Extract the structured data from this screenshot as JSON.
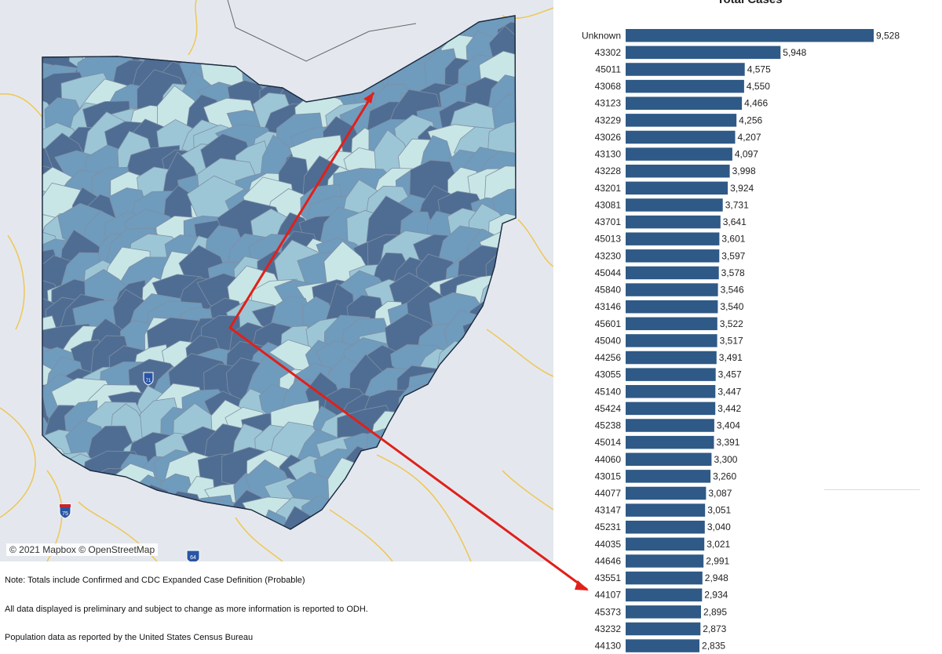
{
  "map": {
    "attribution": "© 2021 Mapbox © OpenStreetMap",
    "shield_i75": "75",
    "shield_i71": "71",
    "shield_i64": "64",
    "colors": {
      "background": "#e4e8ee",
      "dark_fill": "#4f6d93",
      "mid_fill": "#6f9bbd",
      "light_fill": "#9cc6d6",
      "pale_fill": "#c9e6e6",
      "road": "#f0c44e",
      "arrow": "#e0201a"
    }
  },
  "notes": [
    "Note: Totals include Confirmed and CDC Expanded Case Definition (Probable)",
    "All data displayed is preliminary and subject to change as more information is reported to ODH.",
    "Population data as reported by the United States Census Bureau"
  ],
  "chart_data": {
    "type": "bar",
    "orientation": "horizontal",
    "title": "Total Cases",
    "bar_color": "#2f5986",
    "categories": [
      "Unknown",
      "43302",
      "45011",
      "43068",
      "43123",
      "43229",
      "43026",
      "43130",
      "43228",
      "43201",
      "43081",
      "43701",
      "45013",
      "43230",
      "45044",
      "45840",
      "43146",
      "45601",
      "45040",
      "44256",
      "43055",
      "45140",
      "45424",
      "45238",
      "45014",
      "44060",
      "43015",
      "44077",
      "43147",
      "45231",
      "44035",
      "44646",
      "43551",
      "44107",
      "45373",
      "43232",
      "44130"
    ],
    "values": [
      9528,
      5948,
      4575,
      4550,
      4466,
      4256,
      4207,
      4097,
      3998,
      3924,
      3731,
      3641,
      3601,
      3597,
      3578,
      3546,
      3540,
      3522,
      3517,
      3491,
      3457,
      3447,
      3442,
      3404,
      3391,
      3300,
      3260,
      3087,
      3051,
      3040,
      3021,
      2991,
      2948,
      2934,
      2895,
      2873,
      2835
    ],
    "value_labels": [
      "9,528",
      "5,948",
      "4,575",
      "4,550",
      "4,466",
      "4,256",
      "4,207",
      "4,097",
      "3,998",
      "3,924",
      "3,731",
      "3,641",
      "3,601",
      "3,597",
      "3,578",
      "3,546",
      "3,540",
      "3,522",
      "3,517",
      "3,491",
      "3,457",
      "3,447",
      "3,442",
      "3,404",
      "3,391",
      "3,300",
      "3,260",
      "3,087",
      "3,051",
      "3,040",
      "3,021",
      "2,991",
      "2,948",
      "2,934",
      "2,895",
      "2,873",
      "2,835"
    ]
  }
}
